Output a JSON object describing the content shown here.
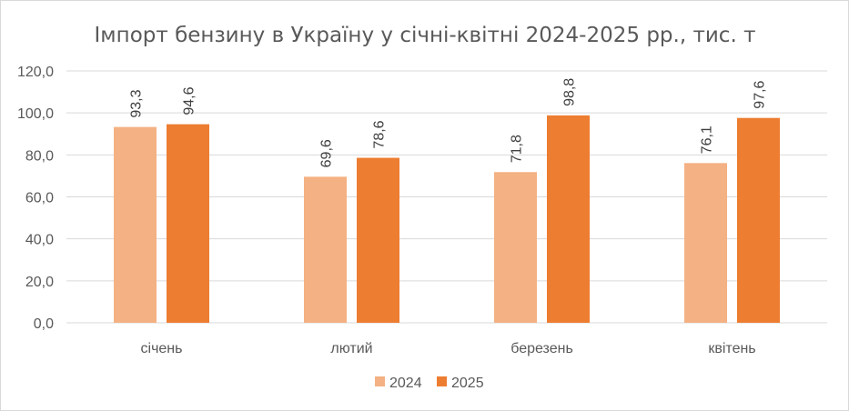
{
  "chart_data": {
    "type": "bar",
    "title": "Імпорт бензину в Україну у січні-квітні 2024-2025 рр., тис. т",
    "categories": [
      "січень",
      "лютий",
      "березень",
      "квітень"
    ],
    "series": [
      {
        "name": "2024",
        "values": [
          93.3,
          69.6,
          71.8,
          76.1
        ],
        "labels": [
          "93,3",
          "69,6",
          "71,8",
          "76,1"
        ],
        "color": "#f4b183"
      },
      {
        "name": "2025",
        "values": [
          94.6,
          78.6,
          98.8,
          97.6
        ],
        "labels": [
          "94,6",
          "78,6",
          "98,8",
          "97,6"
        ],
        "color": "#ed7d31"
      }
    ],
    "ylim": [
      0,
      120
    ],
    "yticks": [
      0,
      20,
      40,
      60,
      80,
      100,
      120
    ],
    "ytick_labels": [
      "0,0",
      "20,0",
      "40,0",
      "60,0",
      "80,0",
      "100,0",
      "120,0"
    ],
    "grid": true,
    "legend_position": "bottom"
  }
}
